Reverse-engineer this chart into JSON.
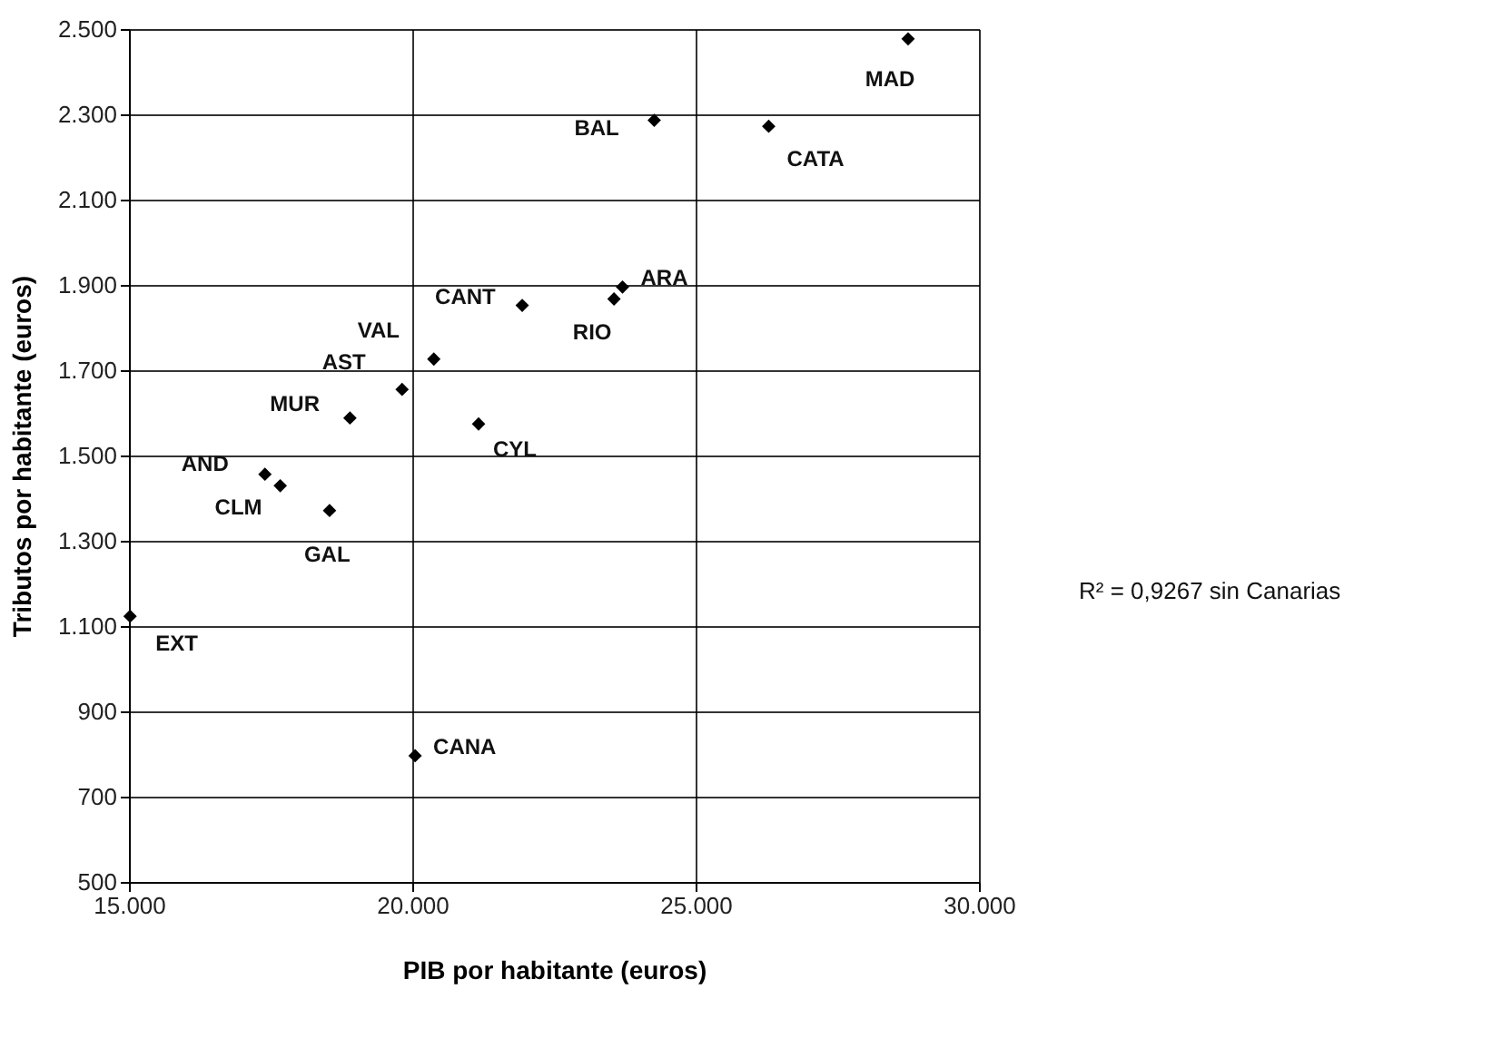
{
  "chart_data": {
    "type": "scatter",
    "xlabel": "PIB por habitante (euros)",
    "ylabel": "Tributos por habitante (euros)",
    "xlim": [
      15000,
      30000
    ],
    "ylim": [
      500,
      2500
    ],
    "xticks": [
      {
        "value": 15000,
        "label": "15.000"
      },
      {
        "value": 20000,
        "label": "20.000"
      },
      {
        "value": 25000,
        "label": "25.000"
      },
      {
        "value": 30000,
        "label": "30.000"
      }
    ],
    "yticks": [
      {
        "value": 500,
        "label": "500"
      },
      {
        "value": 700,
        "label": "700"
      },
      {
        "value": 900,
        "label": "900"
      },
      {
        "value": 1100,
        "label": "1.100"
      },
      {
        "value": 1300,
        "label": "1.300"
      },
      {
        "value": 1500,
        "label": "1.500"
      },
      {
        "value": 1700,
        "label": "1.700"
      },
      {
        "value": 1900,
        "label": "1.900"
      },
      {
        "value": 2100,
        "label": "2.100"
      },
      {
        "value": 2300,
        "label": "2.300"
      },
      {
        "value": 2500,
        "label": "2.500"
      }
    ],
    "grid": true,
    "marker": "diamond",
    "series": [
      {
        "color": "#000000",
        "x": [
          28750,
          24270,
          26290,
          23710,
          23560,
          21940,
          20380,
          19820,
          18900,
          21170,
          17400,
          17670,
          18540,
          15020,
          20050
        ],
        "values": [
          2477,
          2286,
          2272,
          1895,
          1867,
          1852,
          1726,
          1655,
          1588,
          1574,
          1456,
          1429,
          1371,
          1123,
          796
        ]
      }
    ],
    "annotations": [
      {
        "text": "MAD",
        "x": 28750,
        "y": 2477
      },
      {
        "text": "BAL",
        "x": 24270,
        "y": 2286
      },
      {
        "text": "CATA",
        "x": 26290,
        "y": 2272
      },
      {
        "text": "ARA",
        "x": 23710,
        "y": 1895
      },
      {
        "text": "RIO",
        "x": 23560,
        "y": 1867
      },
      {
        "text": "CANT",
        "x": 21940,
        "y": 1852
      },
      {
        "text": "VAL",
        "x": 20380,
        "y": 1726
      },
      {
        "text": "AST",
        "x": 19820,
        "y": 1655
      },
      {
        "text": "MUR",
        "x": 18900,
        "y": 1588
      },
      {
        "text": "CYL",
        "x": 21170,
        "y": 1574
      },
      {
        "text": "AND",
        "x": 17400,
        "y": 1456
      },
      {
        "text": "CLM",
        "x": 17670,
        "y": 1429
      },
      {
        "text": "GAL",
        "x": 18540,
        "y": 1371
      },
      {
        "text": "EXT",
        "x": 15020,
        "y": 1123
      },
      {
        "text": "CANA",
        "x": 20050,
        "y": 796
      },
      "R² = 0,9267 sin Canarias"
    ]
  }
}
